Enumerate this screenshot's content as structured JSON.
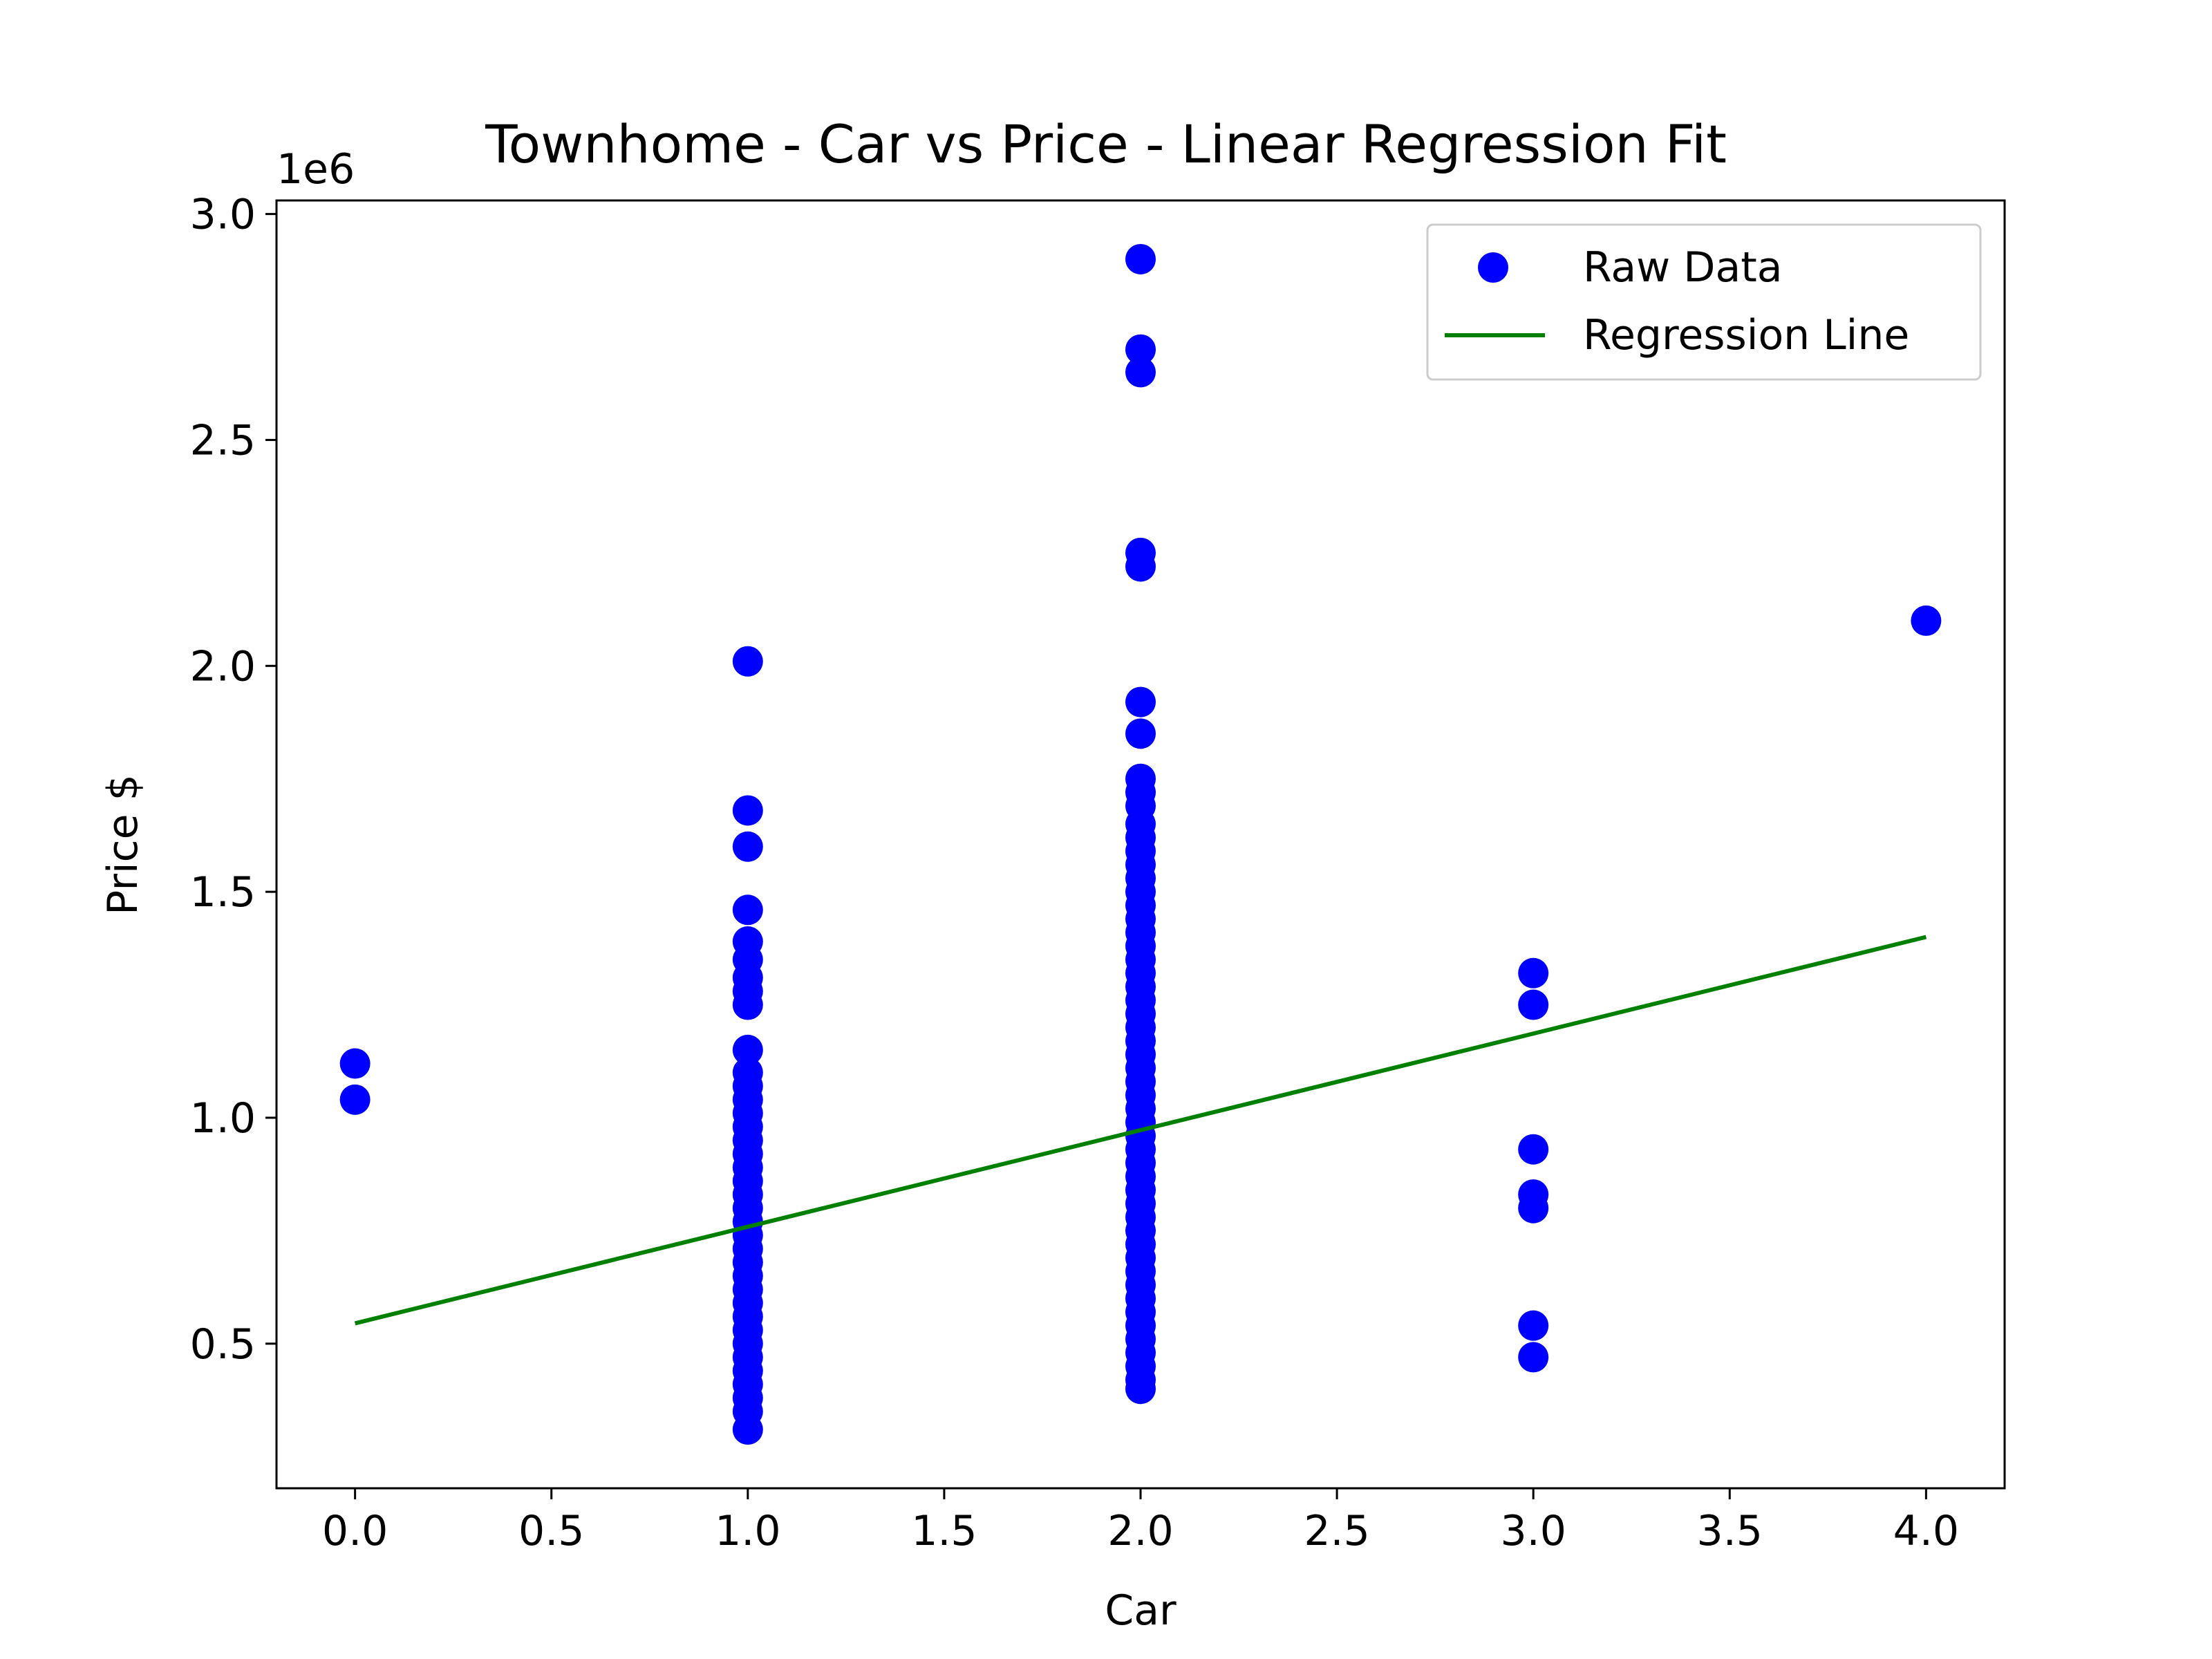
{
  "chart_data": {
    "type": "scatter",
    "title": "Townhome - Car vs Price - Linear Regression Fit",
    "xlabel": "Car",
    "ylabel": "Price $",
    "y_offset_label": "1e6",
    "xlim": [
      -0.2,
      4.2
    ],
    "ylim": [
      0.18,
      3.03
    ],
    "x_ticks": [
      0.0,
      0.5,
      1.0,
      1.5,
      2.0,
      2.5,
      3.0,
      3.5,
      4.0
    ],
    "x_tick_labels": [
      "0.0",
      "0.5",
      "1.0",
      "1.5",
      "2.0",
      "2.5",
      "3.0",
      "3.5",
      "4.0"
    ],
    "y_ticks": [
      0.5,
      1.0,
      1.5,
      2.0,
      2.5,
      3.0
    ],
    "y_tick_labels": [
      "0.5",
      "1.0",
      "1.5",
      "2.0",
      "2.5",
      "3.0"
    ],
    "grid": false,
    "legend_position": "top-right",
    "colors": {
      "points": "#0000ff",
      "regression": "#008000",
      "axes": "#000000",
      "legend_border": "#cccccc"
    },
    "series": [
      {
        "name": "Raw Data",
        "kind": "scatter",
        "points": [
          [
            0,
            1.12
          ],
          [
            0,
            1.04
          ],
          [
            1,
            2.01
          ],
          [
            1,
            1.68
          ],
          [
            1,
            1.6
          ],
          [
            1,
            1.46
          ],
          [
            1,
            1.39
          ],
          [
            1,
            1.35
          ],
          [
            1,
            1.31
          ],
          [
            1,
            1.28
          ],
          [
            1,
            1.25
          ],
          [
            1,
            1.15
          ],
          [
            1,
            1.1
          ],
          [
            1,
            1.07
          ],
          [
            1,
            1.04
          ],
          [
            1,
            1.01
          ],
          [
            1,
            0.98
          ],
          [
            1,
            0.95
          ],
          [
            1,
            0.92
          ],
          [
            1,
            0.89
          ],
          [
            1,
            0.86
          ],
          [
            1,
            0.83
          ],
          [
            1,
            0.8
          ],
          [
            1,
            0.77
          ],
          [
            1,
            0.74
          ],
          [
            1,
            0.71
          ],
          [
            1,
            0.68
          ],
          [
            1,
            0.65
          ],
          [
            1,
            0.62
          ],
          [
            1,
            0.59
          ],
          [
            1,
            0.56
          ],
          [
            1,
            0.53
          ],
          [
            1,
            0.5
          ],
          [
            1,
            0.47
          ],
          [
            1,
            0.44
          ],
          [
            1,
            0.41
          ],
          [
            1,
            0.38
          ],
          [
            1,
            0.35
          ],
          [
            1,
            0.31
          ],
          [
            2,
            2.9
          ],
          [
            2,
            2.7
          ],
          [
            2,
            2.65
          ],
          [
            2,
            2.25
          ],
          [
            2,
            2.22
          ],
          [
            2,
            1.92
          ],
          [
            2,
            1.85
          ],
          [
            2,
            1.75
          ],
          [
            2,
            1.72
          ],
          [
            2,
            1.69
          ],
          [
            2,
            1.65
          ],
          [
            2,
            1.62
          ],
          [
            2,
            1.59
          ],
          [
            2,
            1.56
          ],
          [
            2,
            1.53
          ],
          [
            2,
            1.5
          ],
          [
            2,
            1.47
          ],
          [
            2,
            1.44
          ],
          [
            2,
            1.41
          ],
          [
            2,
            1.38
          ],
          [
            2,
            1.35
          ],
          [
            2,
            1.32
          ],
          [
            2,
            1.29
          ],
          [
            2,
            1.26
          ],
          [
            2,
            1.23
          ],
          [
            2,
            1.2
          ],
          [
            2,
            1.17
          ],
          [
            2,
            1.14
          ],
          [
            2,
            1.11
          ],
          [
            2,
            1.08
          ],
          [
            2,
            1.05
          ],
          [
            2,
            1.02
          ],
          [
            2,
            0.99
          ],
          [
            2,
            0.96
          ],
          [
            2,
            0.93
          ],
          [
            2,
            0.9
          ],
          [
            2,
            0.87
          ],
          [
            2,
            0.84
          ],
          [
            2,
            0.81
          ],
          [
            2,
            0.78
          ],
          [
            2,
            0.75
          ],
          [
            2,
            0.72
          ],
          [
            2,
            0.69
          ],
          [
            2,
            0.66
          ],
          [
            2,
            0.63
          ],
          [
            2,
            0.6
          ],
          [
            2,
            0.57
          ],
          [
            2,
            0.54
          ],
          [
            2,
            0.51
          ],
          [
            2,
            0.48
          ],
          [
            2,
            0.45
          ],
          [
            2,
            0.42
          ],
          [
            2,
            0.4
          ],
          [
            3,
            1.32
          ],
          [
            3,
            1.25
          ],
          [
            3,
            0.93
          ],
          [
            3,
            0.83
          ],
          [
            3,
            0.8
          ],
          [
            3,
            0.54
          ],
          [
            3,
            0.47
          ],
          [
            4,
            2.1
          ]
        ]
      },
      {
        "name": "Regression Line",
        "kind": "line",
        "points": [
          [
            0,
            0.545
          ],
          [
            4,
            1.4
          ]
        ]
      }
    ]
  }
}
